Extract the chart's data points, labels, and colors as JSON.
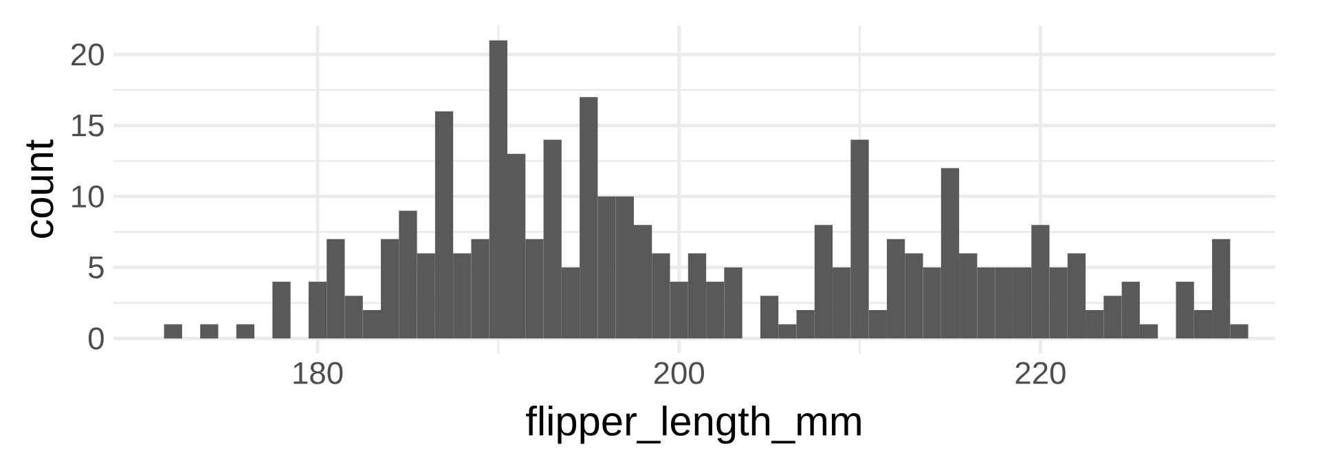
{
  "chart_data": {
    "type": "histogram",
    "xlabel": "flipper_length_mm",
    "ylabel": "count",
    "bins": [
      171.5,
      172.5,
      173.5,
      174.5,
      175.5,
      176.5,
      177.5,
      178.5,
      179.5,
      180.5,
      181.5,
      182.5,
      183.5,
      184.5,
      185.5,
      186.5,
      187.5,
      188.5,
      189.5,
      190.5,
      191.5,
      192.5,
      193.5,
      194.5,
      195.5,
      196.5,
      197.5,
      198.5,
      199.5,
      200.5,
      201.5,
      202.5,
      203.5,
      204.5,
      205.5,
      206.5,
      207.5,
      208.5,
      209.5,
      210.5,
      211.5,
      212.5,
      213.5,
      214.5,
      215.5,
      216.5,
      217.5,
      218.5,
      219.5,
      220.5,
      221.5,
      222.5,
      223.5,
      224.5,
      225.5,
      226.5,
      227.5,
      228.5,
      229.5,
      230.5,
      231.5
    ],
    "values": [
      1,
      0,
      1,
      0,
      1,
      0,
      4,
      0,
      4,
      7,
      3,
      2,
      7,
      9,
      6,
      16,
      6,
      7,
      21,
      13,
      7,
      14,
      5,
      17,
      10,
      10,
      8,
      6,
      4,
      6,
      4,
      5,
      0,
      3,
      1,
      2,
      8,
      5,
      14,
      2,
      7,
      6,
      5,
      12,
      6,
      5,
      5,
      5,
      8,
      5,
      6,
      2,
      3,
      4,
      1,
      0,
      4,
      2,
      7,
      1
    ],
    "color": "#595959",
    "xlim": [
      168.7,
      233
    ],
    "ylim": [
      -1.05,
      22.05
    ],
    "xticks": [
      180,
      200,
      220
    ],
    "yticks": [
      0,
      5,
      10,
      15,
      20
    ],
    "grid": true
  }
}
